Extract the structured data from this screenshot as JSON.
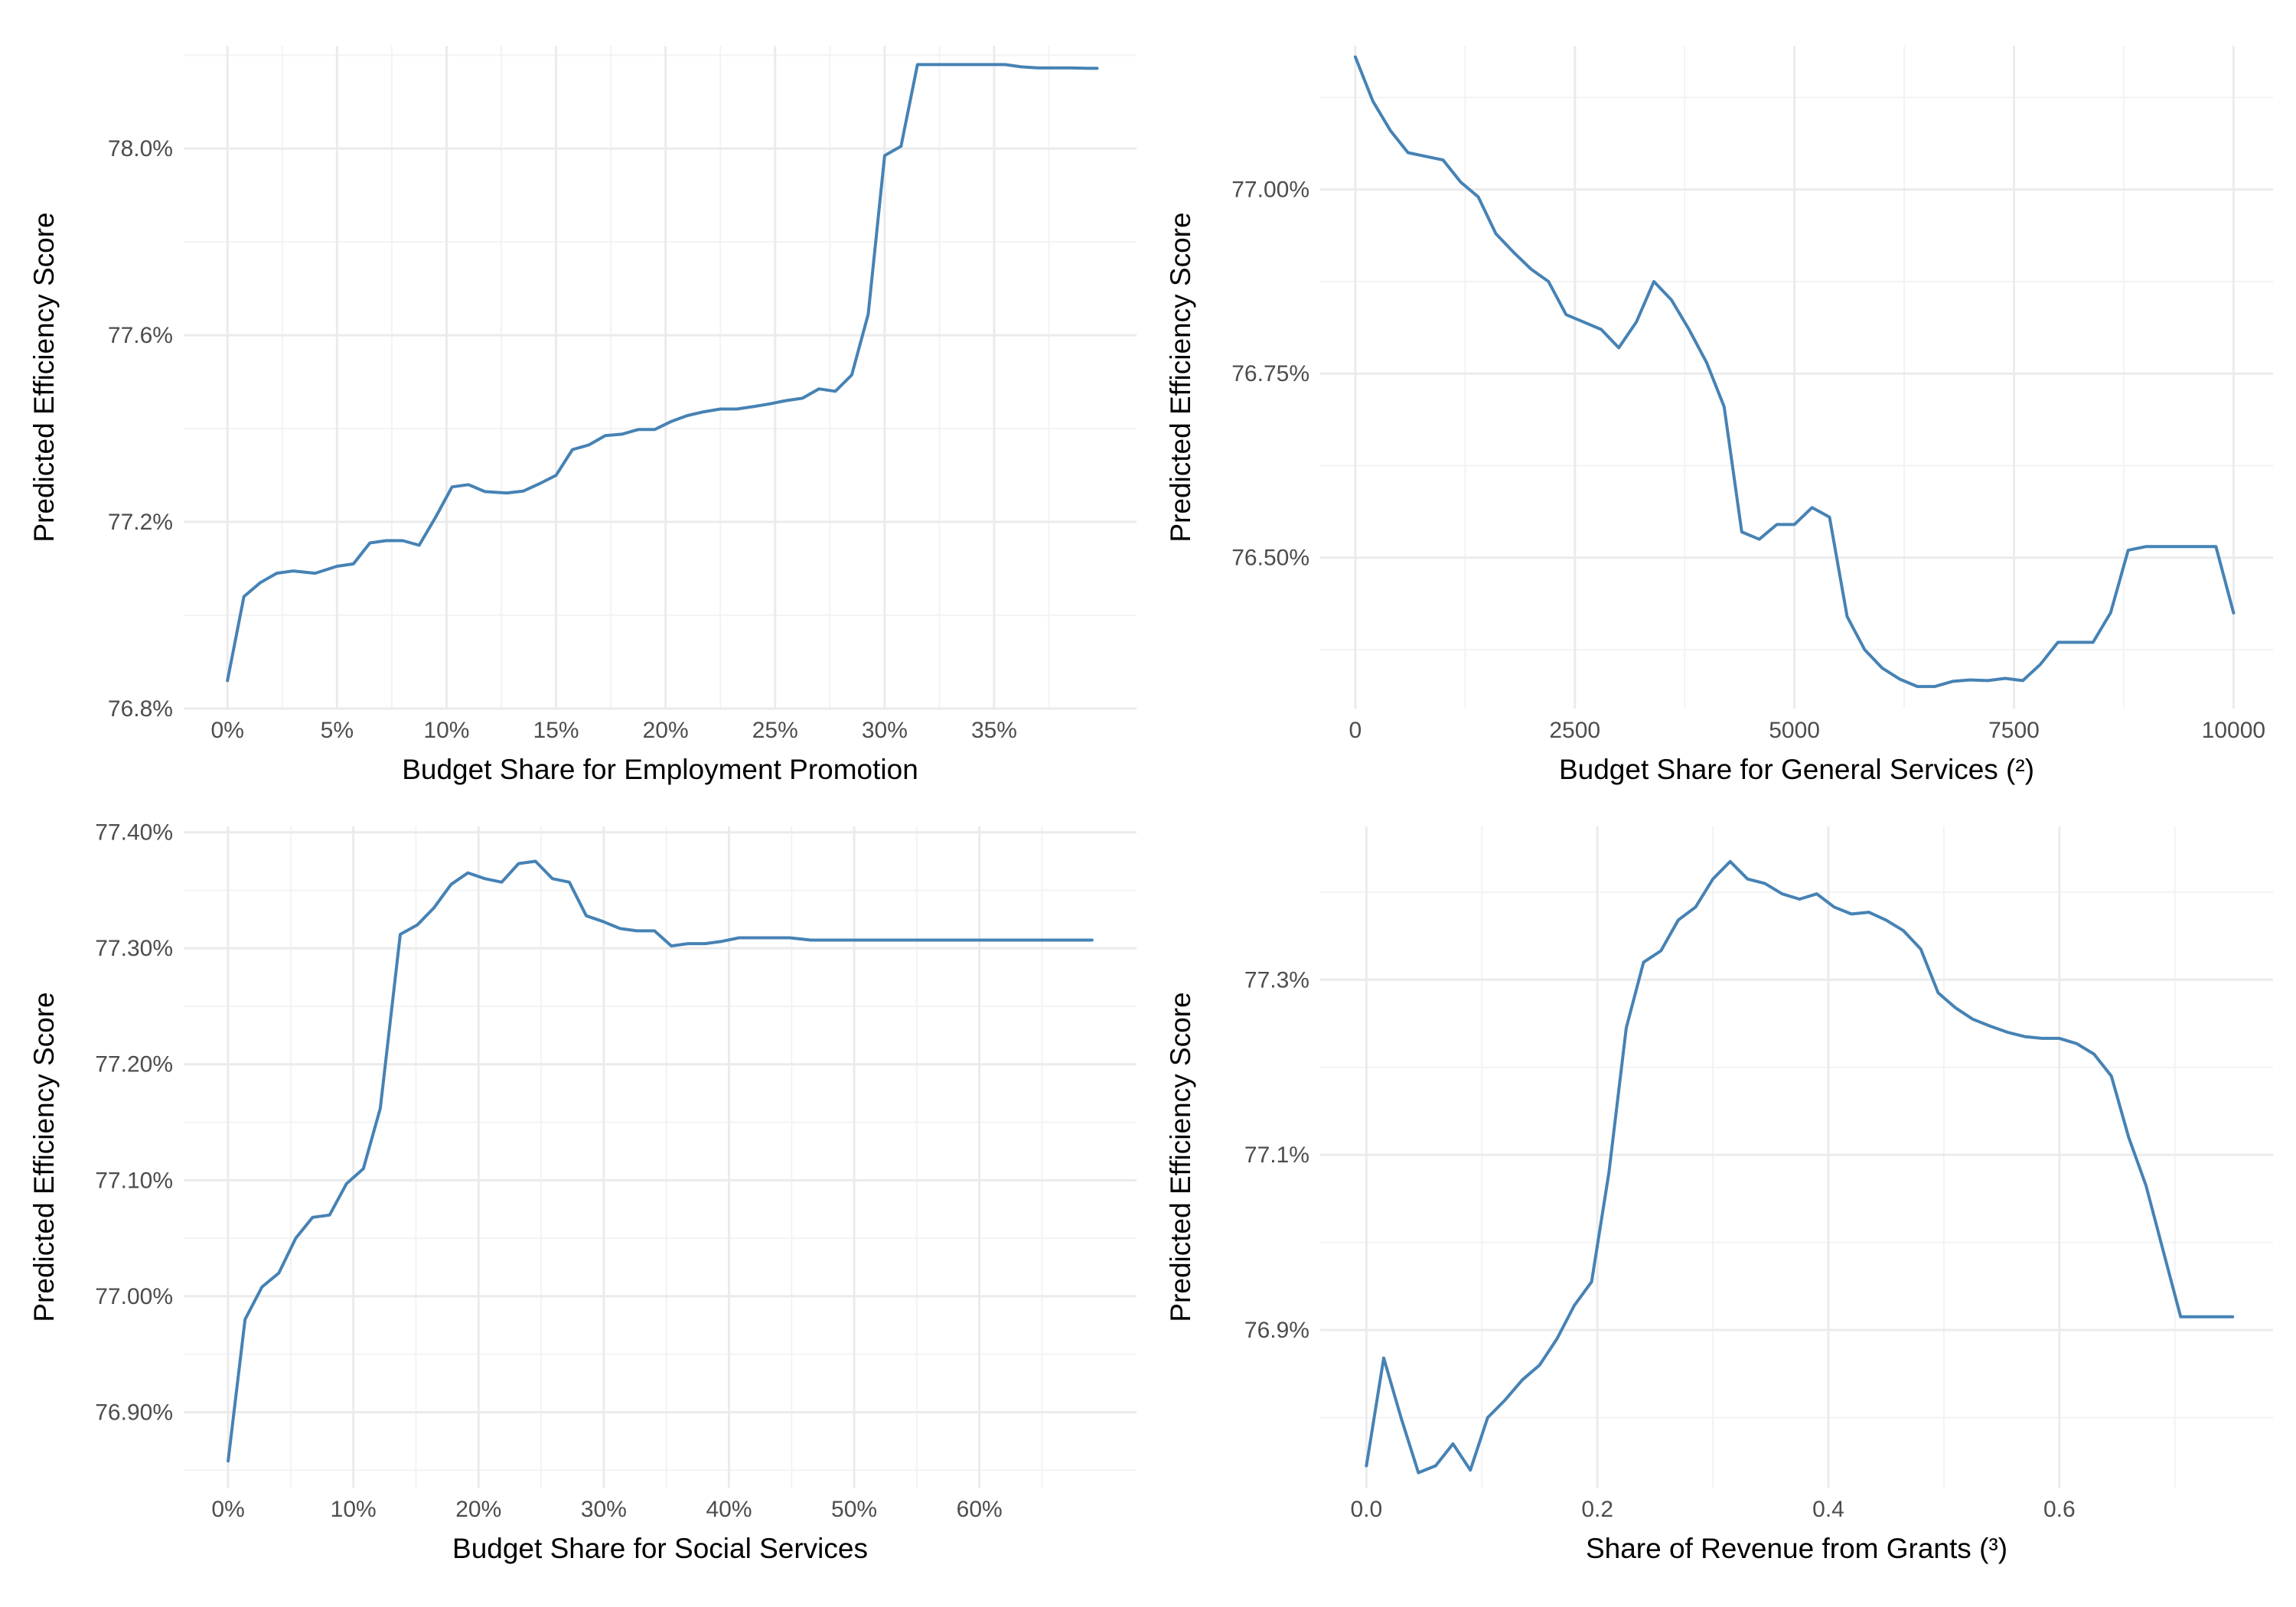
{
  "colors": {
    "line": "#4682b4",
    "grid_major": "#ebebeb",
    "grid_minor": "#f3f3f3",
    "tick_text": "#4d4d4d"
  },
  "chart_data": [
    {
      "type": "line",
      "xlabel": "Budget Share for Employment Promotion",
      "ylabel": "Predicted Efficiency Score",
      "xlim": [
        -0.02,
        0.415
      ],
      "ylim": [
        76.8,
        78.22
      ],
      "x_ticks": [
        0,
        0.05,
        0.1,
        0.15,
        0.2,
        0.25,
        0.3,
        0.35
      ],
      "x_tick_labels": [
        "0%",
        "5%",
        "10%",
        "15%",
        "20%",
        "25%",
        "30%",
        "35%"
      ],
      "y_ticks": [
        76.8,
        77.2,
        77.6,
        78.0
      ],
      "y_tick_labels": [
        "76.8%",
        "77.2%",
        "77.6%",
        "78.0%"
      ],
      "grid": true,
      "series": [
        {
          "x": [
            0,
            0.0075,
            0.015,
            0.0225,
            0.03,
            0.04,
            0.05,
            0.0575,
            0.065,
            0.0725,
            0.08,
            0.0875,
            0.095,
            0.1025,
            0.11,
            0.1175,
            0.1275,
            0.135,
            0.1425,
            0.15,
            0.1575,
            0.165,
            0.1725,
            0.18,
            0.1875,
            0.195,
            0.2025,
            0.21,
            0.2175,
            0.225,
            0.2325,
            0.24,
            0.2475,
            0.255,
            0.2625,
            0.27,
            0.2775,
            0.285,
            0.2925,
            0.3,
            0.3075,
            0.315,
            0.325,
            0.3325,
            0.34,
            0.3475,
            0.355,
            0.3625,
            0.37,
            0.3775,
            0.385,
            0.3925,
            0.397
          ],
          "y": [
            76.86,
            77.04,
            77.07,
            77.09,
            77.095,
            77.09,
            77.105,
            77.11,
            77.155,
            77.16,
            77.16,
            77.15,
            77.21,
            77.275,
            77.28,
            77.265,
            77.262,
            77.266,
            77.282,
            77.3,
            77.355,
            77.365,
            77.385,
            77.388,
            77.398,
            77.398,
            77.415,
            77.428,
            77.436,
            77.442,
            77.442,
            77.447,
            77.453,
            77.46,
            77.465,
            77.485,
            77.48,
            77.515,
            77.645,
            77.985,
            78.005,
            78.18,
            78.18,
            78.18,
            78.18,
            78.18,
            78.18,
            78.175,
            78.173,
            78.173,
            78.173,
            78.172,
            78.172
          ]
        }
      ]
    },
    {
      "type": "line",
      "xlabel": "Budget Share for General Services (²)",
      "ylabel": "Predicted Efficiency Score",
      "xlim": [
        -400,
        10450
      ],
      "ylim": [
        76.295,
        77.195
      ],
      "x_ticks": [
        0,
        2500,
        5000,
        7500,
        10000
      ],
      "x_tick_labels": [
        "0",
        "2500",
        "5000",
        "7500",
        "10000"
      ],
      "y_ticks": [
        76.5,
        76.75,
        77.0
      ],
      "y_tick_labels": [
        "76.50%",
        "76.75%",
        "77.00%"
      ],
      "grid": true,
      "series": [
        {
          "x": [
            0,
            200,
            400,
            600,
            800,
            1000,
            1200,
            1400,
            1600,
            1800,
            2000,
            2200,
            2400,
            2600,
            2800,
            3000,
            3200,
            3400,
            3600,
            3800,
            4000,
            4200,
            4400,
            4600,
            4800,
            5000,
            5200,
            5400,
            5600,
            5800,
            6000,
            6200,
            6400,
            6600,
            6800,
            7000,
            7200,
            7400,
            7600,
            7800,
            8000,
            8200,
            8400,
            8600,
            8800,
            9000,
            9200,
            9400,
            9600,
            9800,
            10000
          ],
          "y": [
            77.18,
            77.12,
            77.08,
            77.05,
            77.045,
            77.04,
            77.01,
            76.99,
            76.94,
            76.915,
            76.892,
            76.875,
            76.83,
            76.82,
            76.81,
            76.785,
            76.82,
            76.875,
            76.85,
            76.81,
            76.765,
            76.705,
            76.535,
            76.525,
            76.545,
            76.545,
            76.568,
            76.555,
            76.42,
            76.375,
            76.35,
            76.335,
            76.325,
            76.325,
            76.332,
            76.334,
            76.333,
            76.336,
            76.333,
            76.355,
            76.385,
            76.385,
            76.385,
            76.425,
            76.51,
            76.515,
            76.515,
            76.515,
            76.515,
            76.515,
            76.425
          ]
        }
      ]
    },
    {
      "type": "line",
      "xlabel": "Budget Share for Social Services",
      "ylabel": "Predicted Efficiency Score",
      "xlim": [
        -0.0355,
        0.7255
      ],
      "ylim": [
        76.835,
        77.405
      ],
      "x_ticks": [
        0,
        0.1,
        0.2,
        0.3,
        0.4,
        0.5,
        0.6
      ],
      "x_tick_labels": [
        "0%",
        "10%",
        "20%",
        "30%",
        "40%",
        "50%",
        "60%"
      ],
      "y_ticks": [
        76.9,
        77.0,
        77.1,
        77.2,
        77.3,
        77.4
      ],
      "y_tick_labels": [
        "76.90%",
        "77.00%",
        "77.10%",
        "77.20%",
        "77.30%",
        "77.40%"
      ],
      "grid": true,
      "series": [
        {
          "x": [
            0,
            0.0135,
            0.027,
            0.0405,
            0.054,
            0.0675,
            0.081,
            0.0945,
            0.108,
            0.1215,
            0.1375,
            0.151,
            0.1645,
            0.178,
            0.1915,
            0.205,
            0.2185,
            0.232,
            0.2455,
            0.259,
            0.2725,
            0.286,
            0.2995,
            0.313,
            0.3265,
            0.3405,
            0.354,
            0.3675,
            0.381,
            0.3945,
            0.408,
            0.4215,
            0.435,
            0.4485,
            0.4655,
            0.4995,
            0.55,
            0.6,
            0.65,
            0.69
          ],
          "y": [
            76.858,
            76.98,
            77.008,
            77.02,
            77.05,
            77.068,
            77.07,
            77.097,
            77.11,
            77.162,
            77.312,
            77.32,
            77.335,
            77.355,
            77.365,
            77.36,
            77.357,
            77.373,
            77.375,
            77.36,
            77.357,
            77.328,
            77.323,
            77.317,
            77.315,
            77.315,
            77.302,
            77.304,
            77.304,
            77.306,
            77.309,
            77.309,
            77.309,
            77.309,
            77.307,
            77.307,
            77.307,
            77.307,
            77.307,
            77.307
          ]
        }
      ]
    },
    {
      "type": "line",
      "xlabel": "Share of Revenue from Grants (³)",
      "ylabel": "Predicted Efficiency Score",
      "xlim": [
        -0.04,
        0.785
      ],
      "ylim": [
        76.72,
        77.475
      ],
      "x_ticks": [
        0,
        0.2,
        0.4,
        0.6
      ],
      "x_tick_labels": [
        "0.0",
        "0.2",
        "0.4",
        "0.6"
      ],
      "y_ticks": [
        76.9,
        77.1,
        77.3
      ],
      "y_tick_labels": [
        "76.9%",
        "77.1%",
        "77.3%"
      ],
      "grid": true,
      "series": [
        {
          "x": [
            0,
            0.015,
            0.03,
            0.045,
            0.06,
            0.075,
            0.09,
            0.105,
            0.12,
            0.135,
            0.15,
            0.165,
            0.18,
            0.195,
            0.21,
            0.225,
            0.24,
            0.255,
            0.27,
            0.285,
            0.3,
            0.315,
            0.33,
            0.345,
            0.36,
            0.375,
            0.39,
            0.405,
            0.42,
            0.435,
            0.45,
            0.465,
            0.48,
            0.495,
            0.51,
            0.525,
            0.54,
            0.555,
            0.57,
            0.585,
            0.6,
            0.615,
            0.63,
            0.645,
            0.66,
            0.675,
            0.69,
            0.705,
            0.72,
            0.735,
            0.75
          ],
          "y": [
            76.745,
            76.868,
            76.8,
            76.737,
            76.745,
            76.77,
            76.74,
            76.8,
            76.82,
            76.843,
            76.86,
            76.89,
            76.928,
            76.955,
            77.08,
            77.245,
            77.32,
            77.333,
            77.368,
            77.383,
            77.415,
            77.435,
            77.415,
            77.41,
            77.398,
            77.392,
            77.398,
            77.383,
            77.375,
            77.377,
            77.368,
            77.356,
            77.335,
            77.285,
            77.268,
            77.255,
            77.247,
            77.24,
            77.235,
            77.233,
            77.233,
            77.227,
            77.215,
            77.19,
            77.12,
            77.065,
            76.99,
            76.915,
            76.915,
            76.915,
            76.915
          ]
        }
      ]
    }
  ]
}
